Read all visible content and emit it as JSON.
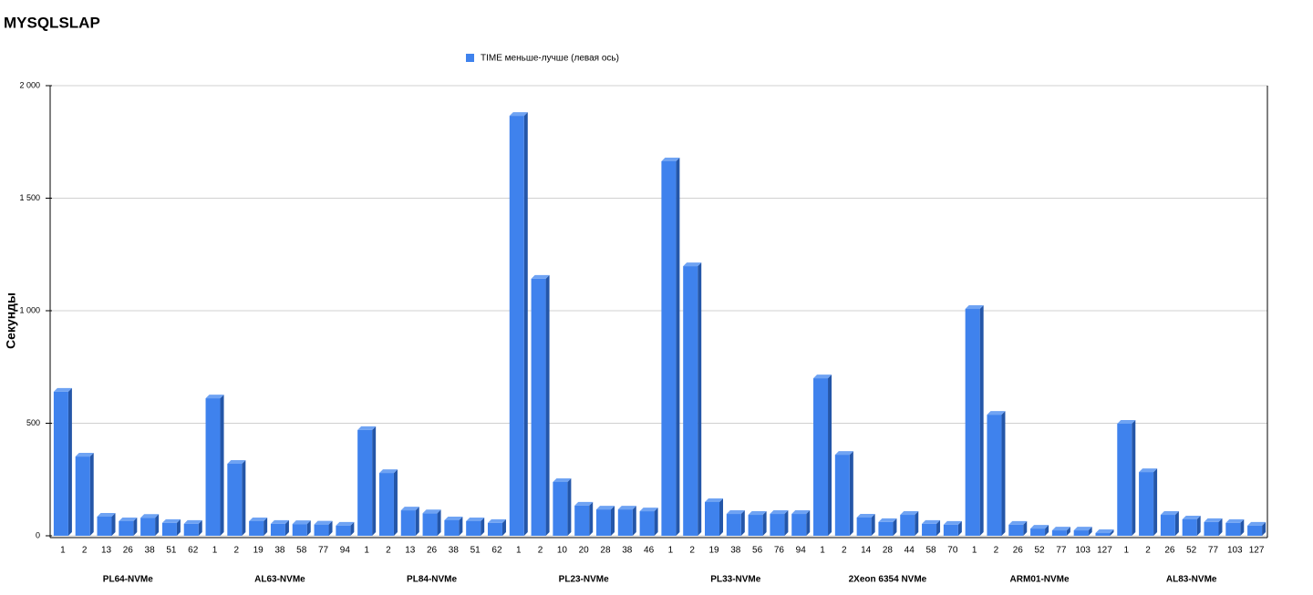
{
  "chart_data": {
    "type": "bar3d",
    "title": "MYSQLSLAP",
    "y_label": "Секунды",
    "group_labels": [
      "PL64-NVMe",
      "AL63-NVMe",
      "PL84-NVMe",
      "PL23-NVMe",
      "PL33-NVMe",
      "2Xeon 6354 NVMe",
      "ARM01-NVMe",
      "AL83-NVMe"
    ],
    "categories": [
      [
        "1",
        "2",
        "13",
        "26",
        "38",
        "51",
        "62"
      ],
      [
        "1",
        "2",
        "19",
        "38",
        "58",
        "77",
        "94"
      ],
      [
        "1",
        "2",
        "13",
        "26",
        "38",
        "51",
        "62"
      ],
      [
        "1",
        "2",
        "10",
        "20",
        "28",
        "38",
        "46"
      ],
      [
        "1",
        "2",
        "19",
        "38",
        "56",
        "76",
        "94"
      ],
      [
        "1",
        "2",
        "14",
        "28",
        "44",
        "58",
        "70"
      ],
      [
        "1",
        "2",
        "26",
        "52",
        "77",
        "103",
        "127"
      ],
      [
        "1",
        "2",
        "26",
        "52",
        "77",
        "103",
        "127"
      ]
    ],
    "series": [
      {
        "name": "TIME меньше-лучше (левая ось)",
        "color": "#3f82ed",
        "values": [
          [
            640,
            352,
            85,
            65,
            80,
            57,
            53
          ],
          [
            611,
            320,
            65,
            53,
            52,
            50,
            45
          ],
          [
            470,
            279,
            113,
            100,
            69,
            65,
            57
          ],
          [
            1866,
            1142,
            239,
            134,
            117,
            117,
            109
          ],
          [
            1664,
            1198,
            150,
            97,
            93,
            97,
            97
          ],
          [
            700,
            360,
            81,
            61,
            93,
            53,
            49
          ],
          [
            1008,
            538,
            49,
            32,
            24,
            24,
            12
          ],
          [
            498,
            283,
            93,
            73,
            61,
            57,
            45
          ]
        ]
      }
    ],
    "ylim": [
      0,
      2000
    ],
    "yticks": [
      0,
      500,
      {
        "value": 1000,
        "label": "1 000"
      },
      {
        "value": 1500,
        "label": "1 500"
      },
      {
        "value": 2000,
        "label": "2 000"
      }
    ],
    "grid": true,
    "legend": "top"
  }
}
